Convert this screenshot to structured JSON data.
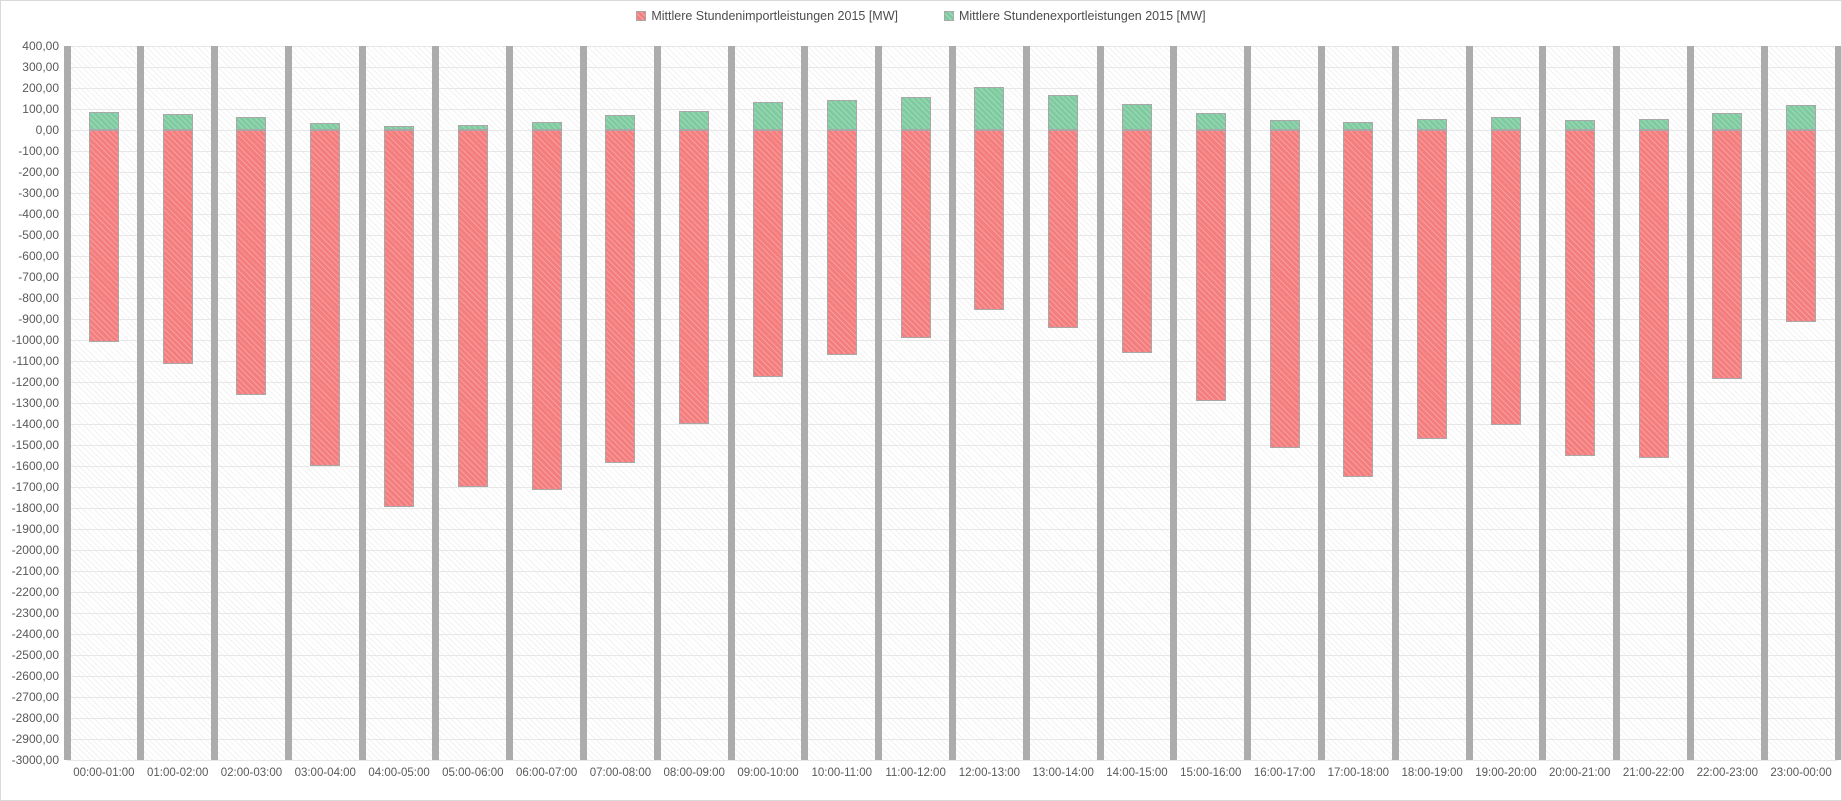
{
  "chart_data": {
    "type": "bar",
    "title": "",
    "xlabel": "",
    "ylabel": "",
    "stacked_at_zero": true,
    "grid": "horizontal",
    "legend_position": "top-center",
    "categories": [
      "00:00-01:00",
      "01:00-02:00",
      "02:00-03:00",
      "03:00-04:00",
      "04:00-05:00",
      "05:00-06:00",
      "06:00-07:00",
      "07:00-08:00",
      "08:00-09:00",
      "09:00-10:00",
      "10:00-11:00",
      "11:00-12:00",
      "12:00-13:00",
      "13:00-14:00",
      "14:00-15:00",
      "15:00-16:00",
      "16:00-17:00",
      "17:00-18:00",
      "18:00-19:00",
      "19:00-20:00",
      "20:00-21:00",
      "21:00-22:00",
      "22:00-23:00",
      "23:00-00:00"
    ],
    "series": [
      {
        "name": "Mittlere Stundenimportleistungen 2015 [MW]",
        "color": "#F47D7D",
        "values": [
          -1010,
          -1115,
          -1260,
          -1600,
          -1795,
          -1700,
          -1715,
          -1585,
          -1400,
          -1175,
          -1070,
          -990,
          -855,
          -945,
          -1060,
          -1290,
          -1515,
          -1650,
          -1470,
          -1405,
          -1550,
          -1560,
          -1185,
          -915
        ]
      },
      {
        "name": "Mittlere Stundenexportleistungen 2015 [MW]",
        "color": "#7FCBA0",
        "values": [
          85,
          75,
          60,
          35,
          20,
          25,
          40,
          70,
          90,
          135,
          145,
          155,
          205,
          165,
          125,
          80,
          50,
          40,
          52,
          63,
          48,
          54,
          80,
          120
        ]
      }
    ],
    "ylim": [
      -3000,
      400
    ],
    "ytick_step": 100,
    "y_tick_labels": [
      "400,00",
      "300,00",
      "200,00",
      "100,00",
      "0,00",
      "-100,00",
      "-200,00",
      "-300,00",
      "-400,00",
      "-500,00",
      "-600,00",
      "-700,00",
      "-800,00",
      "-900,00",
      "-1000,00",
      "-1100,00",
      "-1200,00",
      "-1300,00",
      "-1400,00",
      "-1500,00",
      "-1600,00",
      "-1700,00",
      "-1800,00",
      "-1900,00",
      "-2000,00",
      "-2100,00",
      "-2200,00",
      "-2300,00",
      "-2400,00",
      "-2500,00",
      "-2600,00",
      "-2700,00",
      "-2800,00",
      "-2900,00",
      "-3000,00"
    ],
    "colors": {
      "import_bar": "#F47D7D",
      "export_bar": "#7FCBA0",
      "bar_border": "#A8A8A8",
      "separator": "#ACACAC",
      "gridline": "#E7E7E7",
      "axis_text": "#595959",
      "legend_text": "#4D4D4D"
    }
  }
}
